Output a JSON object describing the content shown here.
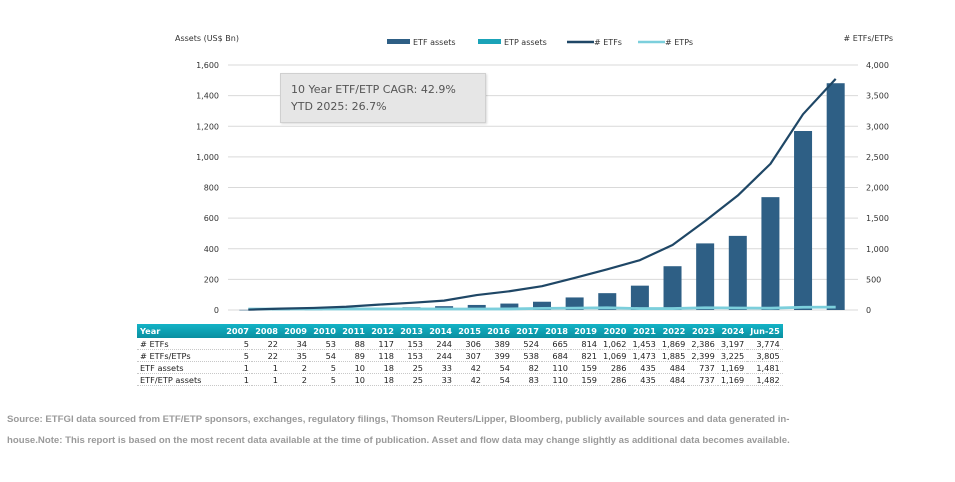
{
  "chart_data": {
    "type": "bar",
    "title": "",
    "categories": [
      "2007",
      "2008",
      "2009",
      "2010",
      "2011",
      "2012",
      "2013",
      "2014",
      "2015",
      "2016",
      "2017",
      "2018",
      "2019",
      "2020",
      "2021",
      "2022",
      "2023",
      "2024",
      "Jun-25"
    ],
    "series": [
      {
        "name": "ETF assets",
        "type": "bar",
        "axis": "left",
        "color": "#2e5f85",
        "values": [
          1,
          1,
          2,
          5,
          10,
          18,
          25,
          33,
          42,
          54,
          82,
          110,
          159,
          286,
          435,
          484,
          737,
          1169,
          1481
        ]
      },
      {
        "name": "ETP assets",
        "type": "bar",
        "axis": "left",
        "color": "#1aa3b8",
        "values": [
          0,
          0,
          0,
          0,
          0,
          0,
          0,
          0,
          0,
          0,
          1,
          0,
          0,
          0,
          0,
          0,
          0,
          0,
          1
        ]
      },
      {
        "name": "# ETFs",
        "type": "line",
        "axis": "right",
        "color": "#1f4766",
        "values": [
          5,
          22,
          34,
          53,
          88,
          117,
          153,
          244,
          306,
          389,
          524,
          665,
          814,
          1062,
          1453,
          1869,
          2386,
          3197,
          3774
        ]
      },
      {
        "name": "# ETPs",
        "type": "line",
        "axis": "right",
        "color": "#7ccfdc",
        "values": [
          0,
          0,
          1,
          1,
          1,
          1,
          0,
          0,
          1,
          10,
          14,
          19,
          7,
          7,
          20,
          16,
          13,
          28,
          31
        ]
      }
    ],
    "ylabel": "Assets (US$ Bn)",
    "ylim": [
      0,
      1600
    ],
    "yticks": [
      "0",
      "200",
      "400",
      "600",
      "800",
      "1,000",
      "1,200",
      "1,400",
      "1,600"
    ],
    "y2label": "# ETFs/ETPs",
    "y2lim": [
      0,
      4000
    ],
    "y2ticks": [
      "0",
      "500",
      "1,000",
      "1,500",
      "2,000",
      "2,500",
      "3,000",
      "3,500",
      "4,000"
    ],
    "grid": true,
    "legend_position": "top-center",
    "annotation": [
      "10 Year ETF/ETP CAGR: 42.9%",
      "YTD 2025: 26.7%"
    ]
  },
  "table": {
    "header_label": "Year",
    "columns": [
      "2007",
      "2008",
      "2009",
      "2010",
      "2011",
      "2012",
      "2013",
      "2014",
      "2015",
      "2016",
      "2017",
      "2018",
      "2019",
      "2020",
      "2021",
      "2022",
      "2023",
      "2024",
      "Jun-25"
    ],
    "rows": [
      {
        "label": "# ETFs",
        "values": [
          "5",
          "22",
          "34",
          "53",
          "88",
          "117",
          "153",
          "244",
          "306",
          "389",
          "524",
          "665",
          "814",
          "1,062",
          "1,453",
          "1,869",
          "2,386",
          "3,197",
          "3,774"
        ]
      },
      {
        "label": "# ETFs/ETPs",
        "values": [
          "5",
          "22",
          "35",
          "54",
          "89",
          "118",
          "153",
          "244",
          "307",
          "399",
          "538",
          "684",
          "821",
          "1,069",
          "1,473",
          "1,885",
          "2,399",
          "3,225",
          "3,805"
        ]
      },
      {
        "label": "ETF assets",
        "values": [
          "1",
          "1",
          "2",
          "5",
          "10",
          "18",
          "25",
          "33",
          "42",
          "54",
          "82",
          "110",
          "159",
          "286",
          "435",
          "484",
          "737",
          "1,169",
          "1,481"
        ]
      },
      {
        "label": "ETF/ETP assets",
        "values": [
          "1",
          "1",
          "2",
          "5",
          "10",
          "18",
          "25",
          "33",
          "42",
          "54",
          "83",
          "110",
          "159",
          "286",
          "435",
          "484",
          "737",
          "1,169",
          "1,482"
        ]
      }
    ]
  },
  "annotation": {
    "line1": "10 Year ETF/ETP CAGR: 42.9%",
    "line2": "YTD 2025: 26.7%"
  },
  "source_note": "Source: ETFGI data sourced from ETF/ETP sponsors, exchanges, regulatory filings, Thomson Reuters/Lipper, Bloomberg, publicly available sources and data generated in-house.Note: This report is based on the most recent data available at the time of publication. Asset and flow data may change slightly as additional data becomes available."
}
